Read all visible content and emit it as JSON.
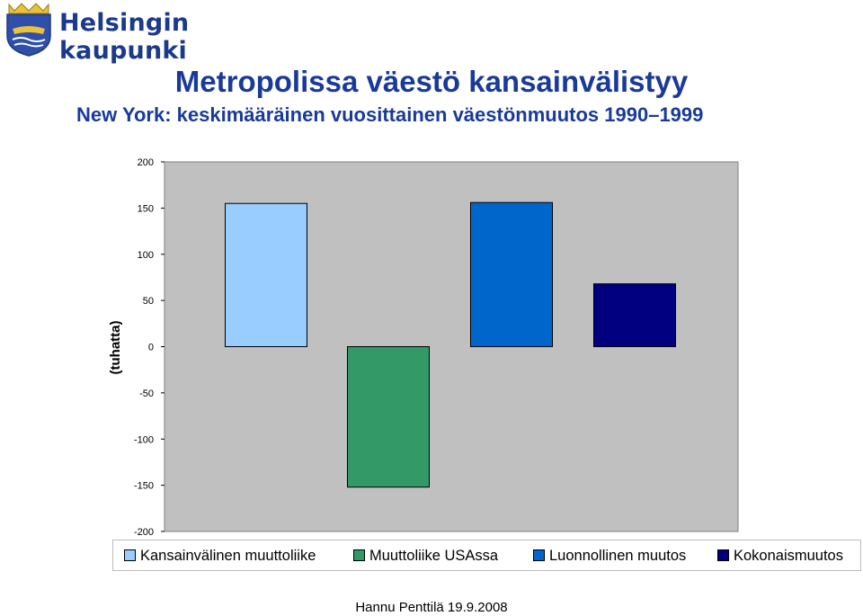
{
  "header": {
    "logo_text": "Helsingin kaupunki"
  },
  "title": "Metropolissa väestö kansainvälistyy",
  "subtitle": "New York: keskimääräinen vuosittainen väestönmuutos 1990–1999",
  "footer": "Hannu Penttilä 19.9.2008",
  "chart_data": {
    "type": "bar",
    "title": "",
    "ylabel": "(tuhatta)",
    "xlabel": "",
    "ylim": [
      -200,
      200
    ],
    "yticks": [
      200,
      150,
      100,
      50,
      0,
      -50,
      -100,
      -150,
      -200
    ],
    "ytick_labels": [
      "200",
      "150",
      "100",
      "50",
      "0",
      "-50",
      "-100",
      "-150",
      "-200"
    ],
    "grid": false,
    "legend_position": "bottom",
    "plot_background": "#c0c0c0",
    "series": [
      {
        "name": "Kansainvälinen muuttoliike",
        "values": [
          155
        ],
        "color": "#99ccff"
      },
      {
        "name": "Muuttoliike USAssa",
        "values": [
          -152
        ],
        "color": "#339966"
      },
      {
        "name": "Luonnollinen muutos",
        "values": [
          156
        ],
        "color": "#0066cc"
      },
      {
        "name": "Kokonaismuutos",
        "values": [
          68
        ],
        "color": "#000080"
      }
    ]
  }
}
